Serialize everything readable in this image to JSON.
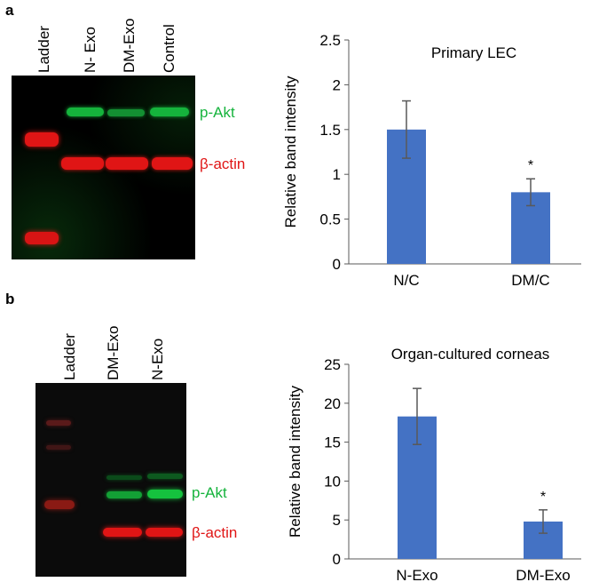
{
  "panels": {
    "a": {
      "label": "a",
      "lanes": [
        "Ladder",
        "N- Exo",
        "DM-Exo",
        "Control"
      ],
      "proteins": {
        "top": "p-Akt",
        "bottom": "β-actin"
      },
      "colors": {
        "pakt": "#15b33c",
        "actin": "#e01515"
      }
    },
    "b": {
      "label": "b",
      "lanes": [
        "Ladder",
        "DM-Exo",
        "N-Exo"
      ],
      "proteins": {
        "top": "p-Akt",
        "bottom": "β-actin"
      },
      "colors": {
        "pakt": "#15b33c",
        "actin": "#e01515"
      }
    }
  },
  "chart_data": [
    {
      "type": "bar",
      "title": "Primary LEC",
      "categories": [
        "N/C",
        "DM/C"
      ],
      "values": [
        1.5,
        0.8
      ],
      "errors": [
        0.32,
        0.15
      ],
      "significance": [
        "",
        "*"
      ],
      "xlabel": "",
      "ylabel": "Relative band intensity",
      "ylim": [
        0,
        2.5
      ],
      "yticks": [
        "0",
        "0.5",
        "1",
        "1.5",
        "2",
        "2.5"
      ],
      "bar_color": "#4472c4"
    },
    {
      "type": "bar",
      "title": "Organ-cultured corneas",
      "categories": [
        "N-Exo",
        "DM-Exo"
      ],
      "values": [
        18.3,
        4.8
      ],
      "errors": [
        3.6,
        1.5
      ],
      "significance": [
        "",
        "*"
      ],
      "xlabel": "",
      "ylabel": "Relative band intensity",
      "ylim": [
        0,
        25
      ],
      "yticks": [
        "0",
        "5",
        "10",
        "15",
        "20",
        "25"
      ],
      "bar_color": "#4472c4"
    }
  ]
}
